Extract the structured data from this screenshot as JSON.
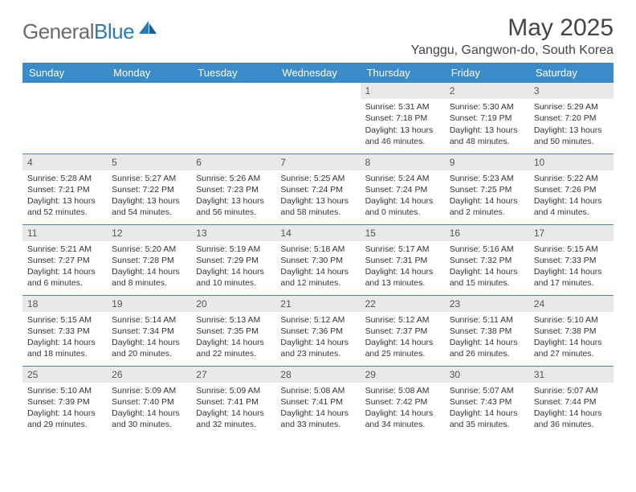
{
  "brand": {
    "part1": "General",
    "part2": "Blue"
  },
  "title": "May 2025",
  "location": "Yanggu, Gangwon-do, South Korea",
  "colors": {
    "header_bg": "#3b8bc9",
    "header_text": "#ffffff",
    "daynum_bg": "#e9e9e9",
    "border": "#3b8bc9",
    "text": "#333333",
    "brand_gray": "#6b6b6b",
    "brand_blue": "#2a7ab9"
  },
  "weekdays": [
    "Sunday",
    "Monday",
    "Tuesday",
    "Wednesday",
    "Thursday",
    "Friday",
    "Saturday"
  ],
  "labels": {
    "sunrise": "Sunrise:",
    "sunset": "Sunset:",
    "daylight": "Daylight:"
  },
  "weeks": [
    [
      null,
      null,
      null,
      null,
      {
        "n": "1",
        "sr": "5:31 AM",
        "ss": "7:18 PM",
        "dl": "13 hours and 46 minutes."
      },
      {
        "n": "2",
        "sr": "5:30 AM",
        "ss": "7:19 PM",
        "dl": "13 hours and 48 minutes."
      },
      {
        "n": "3",
        "sr": "5:29 AM",
        "ss": "7:20 PM",
        "dl": "13 hours and 50 minutes."
      }
    ],
    [
      {
        "n": "4",
        "sr": "5:28 AM",
        "ss": "7:21 PM",
        "dl": "13 hours and 52 minutes."
      },
      {
        "n": "5",
        "sr": "5:27 AM",
        "ss": "7:22 PM",
        "dl": "13 hours and 54 minutes."
      },
      {
        "n": "6",
        "sr": "5:26 AM",
        "ss": "7:23 PM",
        "dl": "13 hours and 56 minutes."
      },
      {
        "n": "7",
        "sr": "5:25 AM",
        "ss": "7:24 PM",
        "dl": "13 hours and 58 minutes."
      },
      {
        "n": "8",
        "sr": "5:24 AM",
        "ss": "7:24 PM",
        "dl": "14 hours and 0 minutes."
      },
      {
        "n": "9",
        "sr": "5:23 AM",
        "ss": "7:25 PM",
        "dl": "14 hours and 2 minutes."
      },
      {
        "n": "10",
        "sr": "5:22 AM",
        "ss": "7:26 PM",
        "dl": "14 hours and 4 minutes."
      }
    ],
    [
      {
        "n": "11",
        "sr": "5:21 AM",
        "ss": "7:27 PM",
        "dl": "14 hours and 6 minutes."
      },
      {
        "n": "12",
        "sr": "5:20 AM",
        "ss": "7:28 PM",
        "dl": "14 hours and 8 minutes."
      },
      {
        "n": "13",
        "sr": "5:19 AM",
        "ss": "7:29 PM",
        "dl": "14 hours and 10 minutes."
      },
      {
        "n": "14",
        "sr": "5:18 AM",
        "ss": "7:30 PM",
        "dl": "14 hours and 12 minutes."
      },
      {
        "n": "15",
        "sr": "5:17 AM",
        "ss": "7:31 PM",
        "dl": "14 hours and 13 minutes."
      },
      {
        "n": "16",
        "sr": "5:16 AM",
        "ss": "7:32 PM",
        "dl": "14 hours and 15 minutes."
      },
      {
        "n": "17",
        "sr": "5:15 AM",
        "ss": "7:33 PM",
        "dl": "14 hours and 17 minutes."
      }
    ],
    [
      {
        "n": "18",
        "sr": "5:15 AM",
        "ss": "7:33 PM",
        "dl": "14 hours and 18 minutes."
      },
      {
        "n": "19",
        "sr": "5:14 AM",
        "ss": "7:34 PM",
        "dl": "14 hours and 20 minutes."
      },
      {
        "n": "20",
        "sr": "5:13 AM",
        "ss": "7:35 PM",
        "dl": "14 hours and 22 minutes."
      },
      {
        "n": "21",
        "sr": "5:12 AM",
        "ss": "7:36 PM",
        "dl": "14 hours and 23 minutes."
      },
      {
        "n": "22",
        "sr": "5:12 AM",
        "ss": "7:37 PM",
        "dl": "14 hours and 25 minutes."
      },
      {
        "n": "23",
        "sr": "5:11 AM",
        "ss": "7:38 PM",
        "dl": "14 hours and 26 minutes."
      },
      {
        "n": "24",
        "sr": "5:10 AM",
        "ss": "7:38 PM",
        "dl": "14 hours and 27 minutes."
      }
    ],
    [
      {
        "n": "25",
        "sr": "5:10 AM",
        "ss": "7:39 PM",
        "dl": "14 hours and 29 minutes."
      },
      {
        "n": "26",
        "sr": "5:09 AM",
        "ss": "7:40 PM",
        "dl": "14 hours and 30 minutes."
      },
      {
        "n": "27",
        "sr": "5:09 AM",
        "ss": "7:41 PM",
        "dl": "14 hours and 32 minutes."
      },
      {
        "n": "28",
        "sr": "5:08 AM",
        "ss": "7:41 PM",
        "dl": "14 hours and 33 minutes."
      },
      {
        "n": "29",
        "sr": "5:08 AM",
        "ss": "7:42 PM",
        "dl": "14 hours and 34 minutes."
      },
      {
        "n": "30",
        "sr": "5:07 AM",
        "ss": "7:43 PM",
        "dl": "14 hours and 35 minutes."
      },
      {
        "n": "31",
        "sr": "5:07 AM",
        "ss": "7:44 PM",
        "dl": "14 hours and 36 minutes."
      }
    ]
  ]
}
